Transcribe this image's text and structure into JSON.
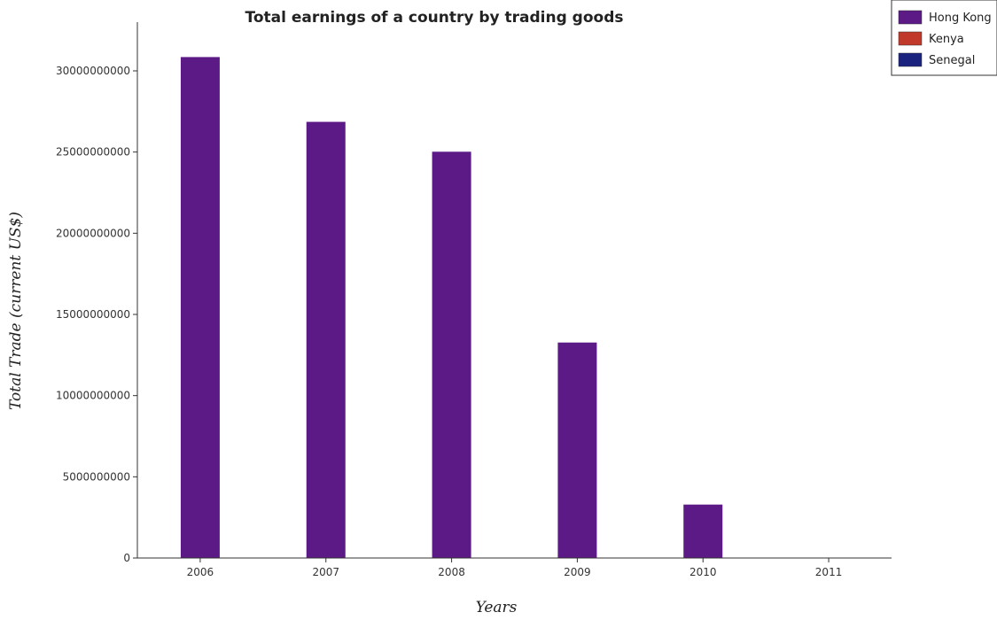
{
  "chart_data": {
    "type": "bar",
    "title": "Total earnings of a country by trading goods",
    "xlabel": "Years",
    "ylabel": "Total Trade (current US$)",
    "categories": [
      "2006",
      "2007",
      "2008",
      "2009",
      "2010",
      "2011"
    ],
    "series": [
      {
        "name": "Hong Kong",
        "color": "#5c1a86",
        "values": [
          30850000000,
          26860000000,
          25020000000,
          13270000000,
          3290000000,
          0
        ]
      },
      {
        "name": "Kenya",
        "color": "#c0392b",
        "values": [
          0,
          0,
          0,
          0,
          0,
          0
        ]
      },
      {
        "name": "Senegal",
        "color": "#1a237e",
        "values": [
          0,
          0,
          0,
          0,
          0,
          0
        ]
      }
    ],
    "yticks": [
      0,
      5000000000,
      10000000000,
      15000000000,
      20000000000,
      25000000000,
      30000000000
    ],
    "ytick_labels": [
      "0",
      "5000000000",
      "10000000000",
      "15000000000",
      "20000000000",
      "25000000000",
      "30000000000"
    ],
    "ylim": [
      0,
      33000000000
    ],
    "grid": false,
    "legend_position": "top-right"
  }
}
